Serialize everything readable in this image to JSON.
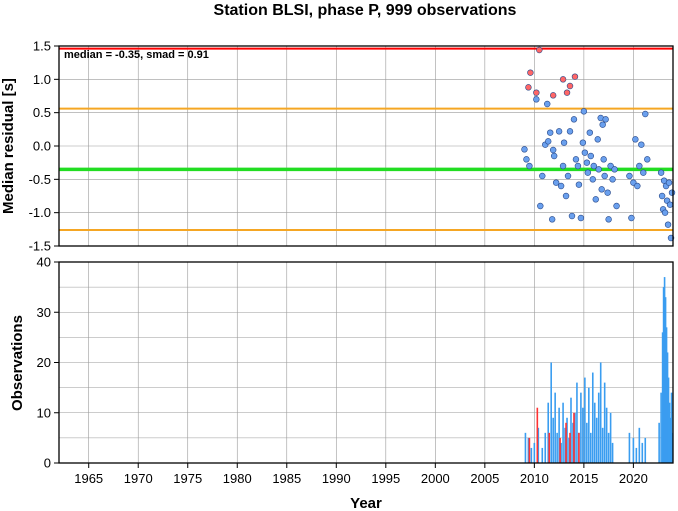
{
  "chart_data": [
    {
      "type": "scatter",
      "title": "Station BLSI, phase P, 999 observations",
      "ylabel": "Median residual [s]",
      "xlim": [
        1962,
        2024
      ],
      "ylim": [
        -1.5,
        1.5
      ],
      "x_ticks": [
        1965,
        1970,
        1975,
        1980,
        1985,
        1990,
        1995,
        2000,
        2005,
        2010,
        2015,
        2020
      ],
      "y_ticks": [
        -1.5,
        -1.0,
        -0.5,
        0.0,
        0.5,
        1.0,
        1.5
      ],
      "y_tick_labels": [
        "-1.5",
        "-1.0",
        "-0.5",
        "0.0",
        "0.5",
        "1.0",
        "1.5"
      ],
      "grid": true,
      "annotation": "median = -0.35, smad = 0.91",
      "reference_lines": [
        {
          "y": 1.46,
          "color": "#ff0000"
        },
        {
          "y": 0.56,
          "color": "#f5a623"
        },
        {
          "y": -0.35,
          "color": "#22dd22"
        },
        {
          "y": -1.26,
          "color": "#f5a623"
        }
      ],
      "colors": {
        "inlier": "#6aa0ee",
        "outlier": "#ff6666"
      },
      "series": [
        {
          "kind": "outlier",
          "points": [
            [
              2009.6,
              1.1
            ],
            [
              2009.4,
              0.88
            ],
            [
              2010.2,
              0.8
            ],
            [
              2010.5,
              1.44
            ],
            [
              2011.9,
              0.76
            ],
            [
              2012.9,
              1.0
            ],
            [
              2013.3,
              0.8
            ],
            [
              2013.6,
              0.9
            ],
            [
              2014.1,
              1.04
            ]
          ]
        },
        {
          "kind": "inlier",
          "points": [
            [
              2009.0,
              -0.05
            ],
            [
              2009.2,
              -0.2
            ],
            [
              2009.5,
              -0.3
            ],
            [
              2010.2,
              0.7
            ],
            [
              2010.6,
              -0.9
            ],
            [
              2010.8,
              -0.45
            ],
            [
              2011.1,
              0.02
            ],
            [
              2011.3,
              0.63
            ],
            [
              2011.4,
              0.07
            ],
            [
              2011.6,
              0.2
            ],
            [
              2011.8,
              -1.1
            ],
            [
              2011.9,
              -0.06
            ],
            [
              2012.0,
              -0.15
            ],
            [
              2012.2,
              -0.55
            ],
            [
              2012.5,
              0.22
            ],
            [
              2012.7,
              -0.6
            ],
            [
              2012.9,
              -0.3
            ],
            [
              2013.0,
              0.05
            ],
            [
              2013.2,
              -0.75
            ],
            [
              2013.4,
              -0.45
            ],
            [
              2013.6,
              0.22
            ],
            [
              2013.8,
              -1.05
            ],
            [
              2014.0,
              0.4
            ],
            [
              2014.2,
              -0.2
            ],
            [
              2014.4,
              -0.3
            ],
            [
              2014.5,
              -0.58
            ],
            [
              2014.7,
              -1.08
            ],
            [
              2014.9,
              0.05
            ],
            [
              2015.0,
              0.52
            ],
            [
              2015.1,
              -0.1
            ],
            [
              2015.3,
              -0.25
            ],
            [
              2015.4,
              -0.4
            ],
            [
              2015.6,
              0.2
            ],
            [
              2015.7,
              -0.15
            ],
            [
              2015.9,
              -0.5
            ],
            [
              2016.0,
              -0.3
            ],
            [
              2016.2,
              -0.8
            ],
            [
              2016.4,
              0.1
            ],
            [
              2016.5,
              -0.35
            ],
            [
              2016.7,
              0.42
            ],
            [
              2016.8,
              -0.65
            ],
            [
              2016.9,
              0.32
            ],
            [
              2017.0,
              -0.2
            ],
            [
              2017.1,
              -0.45
            ],
            [
              2017.2,
              0.4
            ],
            [
              2017.4,
              -0.7
            ],
            [
              2017.5,
              -1.1
            ],
            [
              2017.7,
              -0.3
            ],
            [
              2017.9,
              -0.5
            ],
            [
              2018.1,
              -0.35
            ],
            [
              2018.3,
              -0.9
            ],
            [
              2019.6,
              -0.45
            ],
            [
              2019.8,
              -1.08
            ],
            [
              2020.0,
              -0.55
            ],
            [
              2020.2,
              0.1
            ],
            [
              2020.4,
              -0.6
            ],
            [
              2020.6,
              -0.3
            ],
            [
              2020.8,
              0.02
            ],
            [
              2021.0,
              -0.4
            ],
            [
              2021.2,
              0.48
            ],
            [
              2021.4,
              -0.2
            ],
            [
              2022.8,
              -0.4
            ],
            [
              2022.9,
              -0.75
            ],
            [
              2023.0,
              -0.95
            ],
            [
              2023.1,
              -0.52
            ],
            [
              2023.2,
              -1.0
            ],
            [
              2023.3,
              -0.6
            ],
            [
              2023.4,
              -0.82
            ],
            [
              2023.5,
              -1.18
            ],
            [
              2023.6,
              -0.55
            ],
            [
              2023.7,
              -0.88
            ],
            [
              2023.8,
              -1.38
            ],
            [
              2023.9,
              -0.7
            ]
          ]
        }
      ]
    },
    {
      "type": "bar",
      "xlabel": "Year",
      "ylabel": "Observations",
      "xlim": [
        1962,
        2024
      ],
      "ylim": [
        0,
        40
      ],
      "x_ticks": [
        1965,
        1970,
        1975,
        1980,
        1985,
        1990,
        1995,
        2000,
        2005,
        2010,
        2015,
        2020
      ],
      "y_ticks": [
        0,
        10,
        20,
        30,
        40
      ],
      "grid": true,
      "colors": {
        "normal": "#3a9df0",
        "outlier": "#ff3333"
      },
      "series": [
        {
          "name": "observations",
          "color": "#3a9df0",
          "x": [
            2009.1,
            2009.4,
            2009.7,
            2010.0,
            2010.4,
            2010.8,
            2011.1,
            2011.4,
            2011.7,
            2011.9,
            2012.1,
            2012.3,
            2012.5,
            2012.7,
            2012.9,
            2013.1,
            2013.3,
            2013.5,
            2013.7,
            2013.9,
            2014.1,
            2014.3,
            2014.5,
            2014.7,
            2014.9,
            2015.1,
            2015.3,
            2015.5,
            2015.7,
            2015.9,
            2016.1,
            2016.3,
            2016.5,
            2016.7,
            2016.9,
            2017.1,
            2017.3,
            2017.5,
            2017.7,
            2017.9,
            2019.6,
            2020.0,
            2020.3,
            2020.6,
            2020.9,
            2021.2,
            2022.6,
            2022.8,
            2022.95,
            2023.05,
            2023.15,
            2023.25,
            2023.35,
            2023.45,
            2023.55,
            2023.65,
            2023.75,
            2023.85,
            2023.95
          ],
          "values": [
            6,
            5,
            3,
            4,
            7,
            3,
            6,
            12,
            20,
            9,
            14,
            6,
            11,
            4,
            12,
            7,
            9,
            5,
            13,
            8,
            10,
            16,
            6,
            14,
            11,
            17,
            8,
            15,
            6,
            18,
            12,
            9,
            14,
            20,
            7,
            16,
            11,
            6,
            10,
            4,
            6,
            5,
            3,
            7,
            4,
            5,
            8,
            14,
            26,
            35,
            37,
            33,
            27,
            22,
            17,
            12,
            9,
            14,
            6
          ]
        },
        {
          "name": "outliers",
          "color": "#ff3333",
          "x": [
            2009.5,
            2010.3,
            2011.5,
            2012.6,
            2013.2,
            2013.6,
            2014.0,
            2014.5
          ],
          "values": [
            5,
            11,
            6,
            5,
            8,
            6,
            10,
            6
          ]
        }
      ]
    }
  ]
}
